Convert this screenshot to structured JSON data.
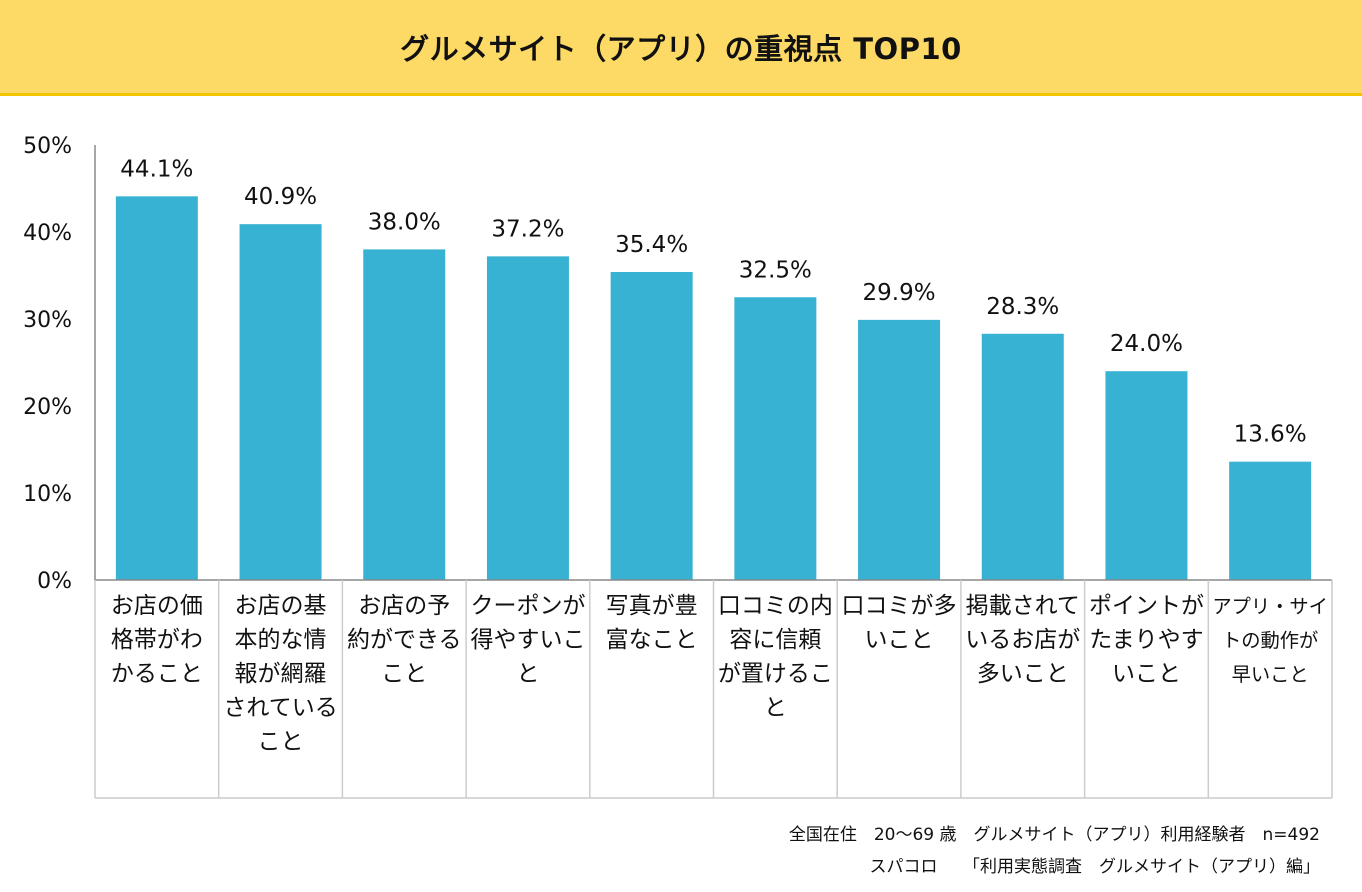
{
  "chart_data": {
    "type": "bar",
    "title": "グルメサイト（アプリ）の重視点 TOP10",
    "categories": [
      "お店の価格帯がわかること",
      "お店の基本的な情報が網羅されていること",
      "お店の予約ができること",
      "クーポンが得やすいこと",
      "写真が豊富なこと",
      "口コミの内容に信頼が置けること",
      "口コミが多いこと",
      "掲載されているお店が多いこと",
      "ポイントがたまりやすいこと",
      "アプリ・サイトの動作が早いこと"
    ],
    "category_lines": [
      [
        "お店の価",
        "格帯がわ",
        "かること"
      ],
      [
        "お店の基",
        "本的な情",
        "報が網羅",
        "されている",
        "こと"
      ],
      [
        "お店の予",
        "約ができる",
        "こと"
      ],
      [
        "クーポンが",
        "得やすいこ",
        "と"
      ],
      [
        "写真が豊",
        "富なこと"
      ],
      [
        "口コミの内",
        "容に信頼",
        "が置けるこ",
        "と"
      ],
      [
        "口コミが多",
        "いこと"
      ],
      [
        "掲載されて",
        "いるお店が",
        "多いこと"
      ],
      [
        "ポイントが",
        "たまりやす",
        "いこと"
      ],
      [
        "アプリ・サイ",
        "トの動作が",
        "早いこと"
      ]
    ],
    "values": [
      44.1,
      40.9,
      38.0,
      37.2,
      35.4,
      32.5,
      29.9,
      28.3,
      24.0,
      13.6
    ],
    "value_labels": [
      "44.1%",
      "40.9%",
      "38.0%",
      "37.2%",
      "35.4%",
      "32.5%",
      "29.9%",
      "28.3%",
      "24.0%",
      "13.6%"
    ],
    "ylim": [
      0,
      50
    ],
    "yticks": [
      0,
      10,
      20,
      30,
      40,
      50
    ],
    "ytick_labels": [
      "0%",
      "10%",
      "20%",
      "30%",
      "40%",
      "50%"
    ],
    "xlabel": "",
    "ylabel": "",
    "grid": false,
    "legend": "none",
    "bar_color": "#38b2d2"
  },
  "footnotes": {
    "line1": "全国在住　20～69 歳　グルメサイト（アプリ）利用経験者　n=492",
    "line2": "スパコロ　　「利用実態調査　グルメサイト（アプリ）編」"
  },
  "colors": {
    "banner_background": "#fdd966",
    "banner_border": "#f5c400",
    "bar": "#38b2d2",
    "axis": "#888888",
    "table_border": "#cccccc"
  }
}
